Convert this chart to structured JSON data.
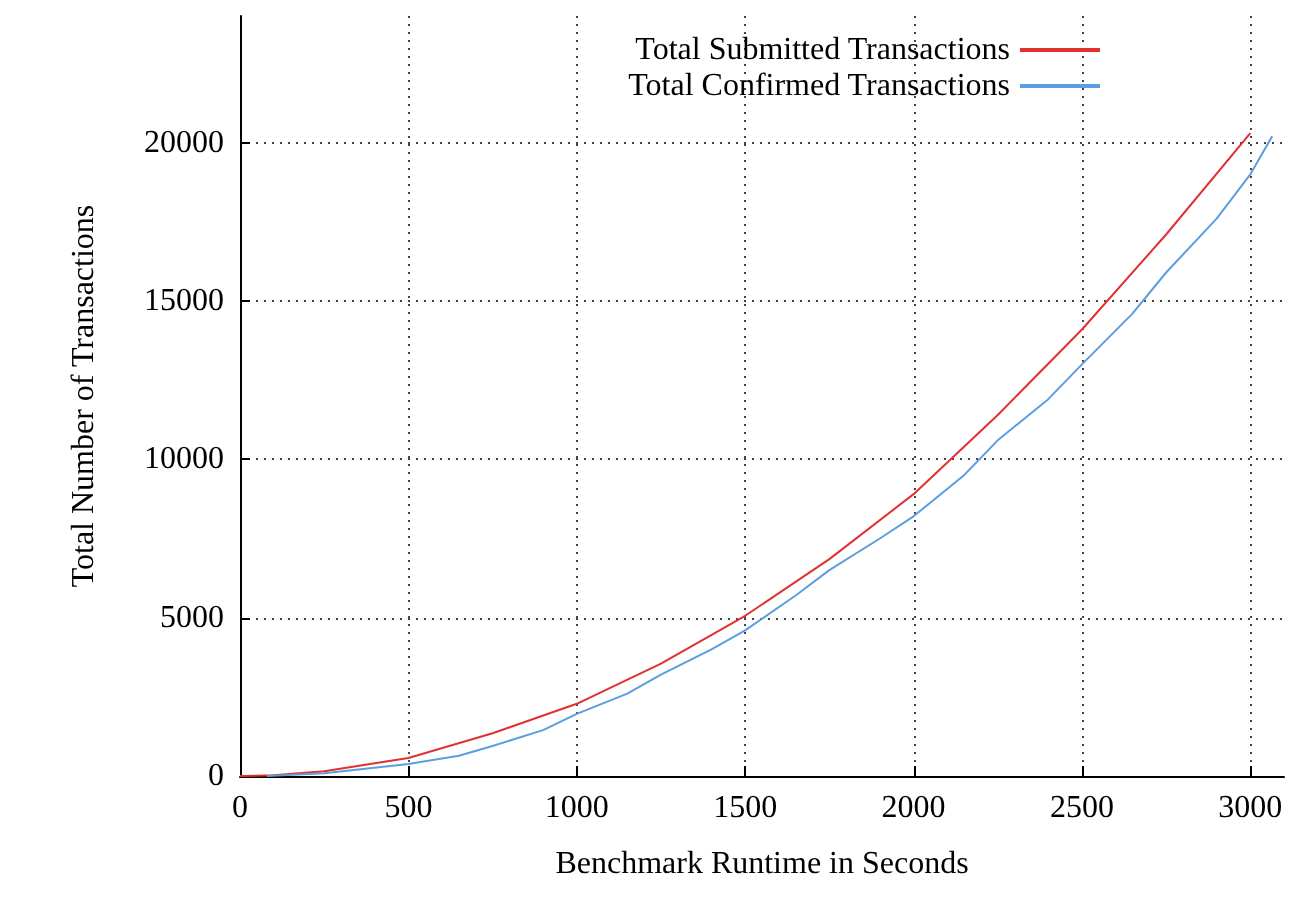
{
  "chart_data": {
    "type": "line",
    "xlabel": "Benchmark Runtime in Seconds",
    "ylabel": "Total Number of Transactions",
    "xlim": [
      0,
      3100
    ],
    "xticks": [
      0,
      500,
      1000,
      1500,
      2000,
      2500,
      3000
    ],
    "ylim": [
      0,
      24000
    ],
    "yticks": [
      0,
      5000,
      10000,
      15000,
      20000
    ],
    "grid": true,
    "legend": "top right",
    "series": [
      {
        "name": "Total Submitted Transactions",
        "color": "#e03030",
        "x": [
          0,
          100,
          250,
          500,
          750,
          1000,
          1250,
          1500,
          1750,
          2000,
          2250,
          2500,
          2750,
          3000
        ],
        "values": [
          0,
          20,
          150,
          570,
          1350,
          2280,
          3550,
          5060,
          6850,
          8900,
          11400,
          14100,
          17100,
          20300
        ]
      },
      {
        "name": "Total Confirmed Transactions",
        "color": "#5a9ee0",
        "x": [
          80,
          250,
          500,
          650,
          750,
          900,
          1000,
          1150,
          1250,
          1400,
          1500,
          1650,
          1750,
          1900,
          2000,
          2150,
          2250,
          2400,
          2500,
          2650,
          2750,
          2900,
          3000,
          3065
        ],
        "values": [
          0,
          90,
          380,
          640,
          950,
          1450,
          1960,
          2600,
          3200,
          4000,
          4600,
          5700,
          6500,
          7500,
          8200,
          9500,
          10600,
          11900,
          13000,
          14600,
          15900,
          17600,
          19000,
          20200
        ]
      }
    ]
  }
}
